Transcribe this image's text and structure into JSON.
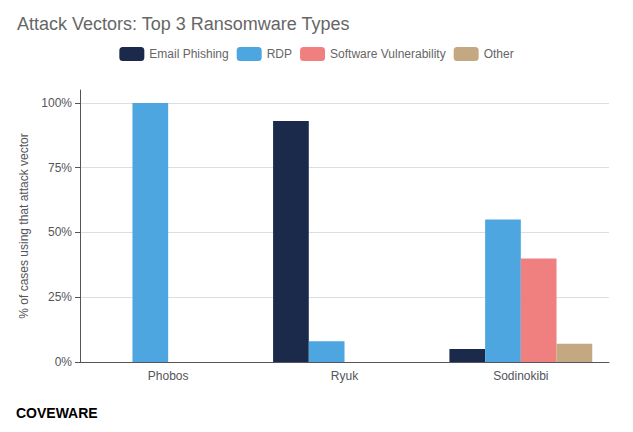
{
  "chart_data": {
    "type": "bar",
    "title": "Attack Vectors: Top 3 Ransomware Types",
    "ylabel": "% of cases using that attack vector",
    "categories": [
      "Phobos",
      "Ryuk",
      "Sodinokibi"
    ],
    "series": [
      {
        "name": "Email Phishing",
        "color": "#1b2a4a",
        "values": [
          0.0,
          0.93,
          0.05
        ]
      },
      {
        "name": "RDP",
        "color": "#4da6e0",
        "values": [
          1.0,
          0.08,
          0.55
        ]
      },
      {
        "name": "Software Vulnerability",
        "color": "#f08080",
        "values": [
          0.0,
          0.0,
          0.4
        ]
      },
      {
        "name": "Other",
        "color": "#c4a882",
        "values": [
          0.0,
          0.0,
          0.07
        ]
      }
    ],
    "ylim": [
      0,
      1.05
    ],
    "yticks": [
      {
        "value": 0,
        "label": "0%"
      },
      {
        "value": 0.25,
        "label": "25%"
      },
      {
        "value": 0.5,
        "label": "50%"
      },
      {
        "value": 0.75,
        "label": "75%"
      },
      {
        "value": 1.0,
        "label": "100%"
      }
    ],
    "grid": true,
    "legend": "top",
    "annotations": [
      {
        "text": "COVE",
        "color": "#1b2a6a"
      },
      {
        "text": "WARE",
        "color": "#2b7fd4"
      }
    ]
  }
}
